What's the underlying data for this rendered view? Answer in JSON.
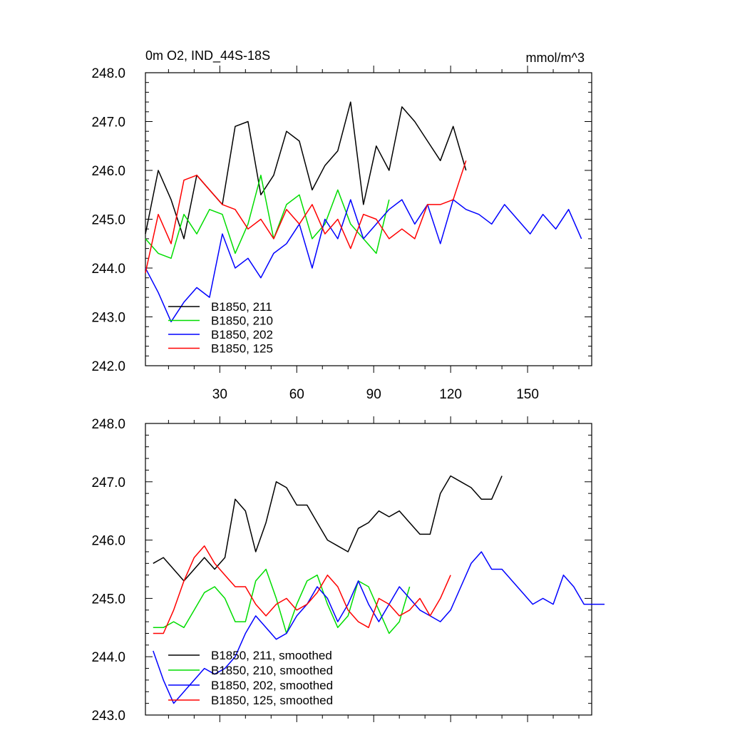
{
  "chart_data": [
    {
      "type": "line",
      "title": "0m O2, IND_44S-18S",
      "units": "mmol/m^3",
      "xlim": [
        1,
        175
      ],
      "ylim": [
        242.0,
        248.0
      ],
      "xticks": [
        30,
        60,
        90,
        120,
        150
      ],
      "xtick_labels": [
        "30",
        "60",
        "90",
        "120",
        "150"
      ],
      "yticks": [
        242,
        243,
        244,
        245,
        246,
        247,
        248
      ],
      "ytick_labels": [
        "242.0",
        "243.0",
        "244.0",
        "245.0",
        "246.0",
        "247.0",
        "248.0"
      ],
      "legend": [
        "B1850, 211",
        "B1850, 210",
        "B1850, 202",
        "B1850, 125"
      ],
      "legend_position": "lower-left",
      "series": [
        {
          "name": "B1850, 211",
          "color": "#000000",
          "x_start": 1,
          "x_step": 5,
          "values": [
            244.7,
            246.0,
            245.4,
            244.6,
            245.9,
            245.6,
            245.3,
            246.9,
            247.0,
            245.5,
            245.9,
            246.8,
            246.6,
            245.6,
            246.1,
            246.4,
            247.4,
            245.3,
            246.5,
            246.0,
            247.3,
            247.0,
            246.6,
            246.2,
            246.9,
            246.0
          ]
        },
        {
          "name": "B1850, 210",
          "color": "#00dd00",
          "x_start": 1,
          "x_step": 5,
          "values": [
            244.6,
            244.3,
            244.2,
            245.1,
            244.7,
            245.2,
            245.1,
            244.3,
            244.9,
            245.9,
            244.6,
            245.3,
            245.5,
            244.6,
            244.9,
            245.6,
            244.9,
            244.6,
            244.3,
            245.4
          ]
        },
        {
          "name": "B1850, 202",
          "color": "#0000ff",
          "x_start": 1,
          "x_step": 5,
          "values": [
            244.0,
            243.5,
            242.9,
            243.3,
            243.6,
            243.4,
            244.7,
            244.0,
            244.2,
            243.8,
            244.3,
            244.5,
            244.9,
            244.0,
            245.0,
            244.6,
            245.4,
            244.6,
            244.9,
            245.2,
            245.4,
            244.9,
            245.3,
            244.5,
            245.4,
            245.2,
            245.1,
            244.9,
            245.3,
            245.0,
            244.7,
            245.1,
            244.8,
            245.2,
            244.6
          ]
        },
        {
          "name": "B1850, 125",
          "color": "#ff0000",
          "x_start": 1,
          "x_step": 5,
          "values": [
            243.9,
            245.1,
            244.5,
            245.8,
            245.9,
            245.6,
            245.3,
            245.2,
            244.8,
            245.0,
            244.6,
            245.2,
            244.9,
            245.3,
            244.7,
            245.0,
            244.4,
            245.1,
            245.0,
            244.6,
            244.8,
            244.6,
            245.3,
            245.3,
            245.4,
            246.2
          ]
        }
      ]
    },
    {
      "type": "line",
      "title": "",
      "xlim": [
        1,
        175
      ],
      "ylim": [
        243.0,
        248.0
      ],
      "xticks": [
        30,
        60,
        90,
        120,
        150
      ],
      "yticks": [
        243,
        244,
        245,
        246,
        247,
        248
      ],
      "ytick_labels": [
        "243.0",
        "244.0",
        "245.0",
        "246.0",
        "247.0",
        "248.0"
      ],
      "legend": [
        "B1850, 211, smoothed",
        "B1850, 210, smoothed",
        "B1850, 202, smoothed",
        "B1850, 125, smoothed"
      ],
      "legend_position": "lower-left",
      "series": [
        {
          "name": "B1850, 211, smoothed",
          "color": "#000000",
          "x_start": 4,
          "x_step": 4,
          "values": [
            245.6,
            245.7,
            245.5,
            245.3,
            245.5,
            245.7,
            245.5,
            245.7,
            246.7,
            246.5,
            245.8,
            246.3,
            247.0,
            246.9,
            246.6,
            246.6,
            246.3,
            246.0,
            245.9,
            245.8,
            246.2,
            246.3,
            246.5,
            246.4,
            246.5,
            246.3,
            246.1,
            246.1,
            246.8,
            247.1,
            247.0,
            246.9,
            246.7,
            246.7,
            247.1
          ]
        },
        {
          "name": "B1850, 210, smoothed",
          "color": "#00dd00",
          "x_start": 4,
          "x_step": 4,
          "values": [
            244.5,
            244.5,
            244.6,
            244.5,
            244.8,
            245.1,
            245.2,
            245.0,
            244.6,
            244.6,
            245.3,
            245.5,
            245.0,
            244.4,
            244.9,
            245.3,
            245.4,
            244.9,
            244.5,
            244.7,
            245.3,
            245.2,
            244.8,
            244.4,
            244.6,
            245.2
          ]
        },
        {
          "name": "B1850, 202, smoothed",
          "color": "#0000ff",
          "x_start": 4,
          "x_step": 4,
          "values": [
            244.1,
            243.6,
            243.2,
            243.4,
            243.6,
            243.8,
            243.7,
            243.8,
            244.0,
            244.4,
            244.7,
            244.5,
            244.3,
            244.4,
            244.7,
            244.9,
            245.2,
            245.0,
            244.6,
            244.9,
            245.3,
            244.9,
            244.6,
            244.9,
            245.2,
            245.0,
            244.8,
            244.7,
            244.6,
            244.8,
            245.2,
            245.6,
            245.8,
            245.5,
            245.5,
            245.3,
            245.1,
            244.9,
            245.0,
            244.9,
            245.4,
            245.2,
            244.9,
            244.9,
            244.9
          ]
        },
        {
          "name": "B1850, 125, smoothed",
          "color": "#ff0000",
          "x_start": 4,
          "x_step": 4,
          "values": [
            244.4,
            244.4,
            244.8,
            245.3,
            245.7,
            245.9,
            245.6,
            245.4,
            245.2,
            245.2,
            244.9,
            244.7,
            244.9,
            245.0,
            244.8,
            244.9,
            245.1,
            245.4,
            245.2,
            244.8,
            244.6,
            244.5,
            245.0,
            244.9,
            244.7,
            244.8,
            245.0,
            244.7,
            245.0,
            245.4
          ]
        }
      ]
    }
  ]
}
